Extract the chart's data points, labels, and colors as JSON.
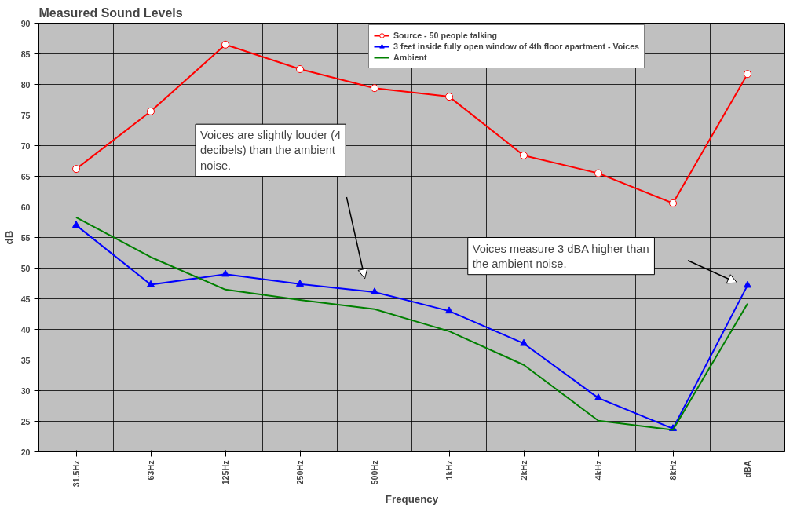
{
  "chart_data": {
    "type": "line",
    "title": "Measured Sound Levels",
    "xlabel": "Frequency",
    "ylabel": "dB",
    "categories": [
      "31.5Hz",
      "63Hz",
      "125Hz",
      "250Hz",
      "500Hz",
      "1kHz",
      "2kHz",
      "4kHz",
      "8kHz",
      "dBA"
    ],
    "series": [
      {
        "name": "Source - 50 people talking",
        "color": "#ff0000",
        "marker": "circle",
        "values": [
          66.2,
          75.6,
          86.5,
          82.5,
          79.4,
          78,
          68.4,
          65.5,
          60.6,
          81.7
        ]
      },
      {
        "name": "3 feet inside fully open window of 4th floor apartment - Voices",
        "color": "#0000ff",
        "marker": "triangle",
        "values": [
          57,
          47.3,
          49,
          47.4,
          46.1,
          43,
          37.7,
          28.8,
          23.8,
          47.2
        ]
      },
      {
        "name": "Ambient",
        "color": "#008000",
        "marker": "none",
        "values": [
          58.3,
          51.8,
          46.5,
          44.8,
          43.3,
          39.7,
          34.2,
          25.1,
          23.6,
          44.2
        ]
      }
    ],
    "ylim": [
      20,
      90
    ],
    "yticks": [
      20,
      25,
      30,
      35,
      40,
      45,
      50,
      55,
      60,
      65,
      70,
      75,
      80,
      85,
      90
    ],
    "grid": true,
    "legend": "top right",
    "annotations": [
      "Voices are slightly louder (4\ndecibels) than the ambient\nnoise.",
      "Voices measure 3 dBA higher than\nthe ambient noise."
    ]
  }
}
